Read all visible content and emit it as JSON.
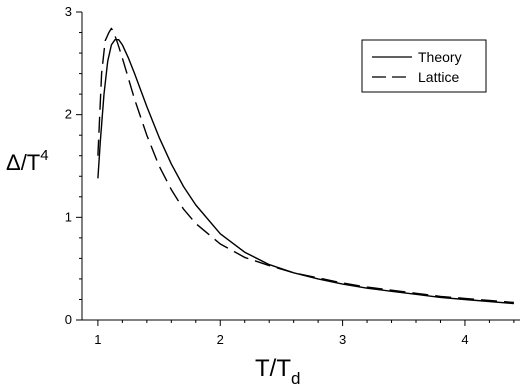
{
  "chart_data": {
    "type": "line",
    "title": "",
    "xlabel": "T/T",
    "xlabel_sub": "d",
    "ylabel": "Δ/T",
    "ylabel_sup": "4",
    "xlim": [
      0.87,
      4.45
    ],
    "ylim": [
      0,
      3
    ],
    "x_ticks": [
      1,
      2,
      3,
      4
    ],
    "x_tick_labels": [
      "1",
      "2",
      "3",
      "4"
    ],
    "y_ticks": [
      0,
      1,
      2,
      3
    ],
    "y_tick_labels": [
      "0",
      "1",
      "2",
      "3"
    ],
    "grid": false,
    "legend_position": "top-right",
    "series": [
      {
        "name": "Theory",
        "style": "solid",
        "color": "#000000",
        "x": [
          1.0,
          1.02,
          1.05,
          1.08,
          1.11,
          1.14,
          1.17,
          1.2,
          1.25,
          1.3,
          1.4,
          1.5,
          1.6,
          1.7,
          1.8,
          2.0,
          2.2,
          2.4,
          2.6,
          2.8,
          3.0,
          3.2,
          3.4,
          3.6,
          3.8,
          4.0,
          4.2,
          4.4
        ],
        "y": [
          1.38,
          1.75,
          2.2,
          2.52,
          2.68,
          2.73,
          2.73,
          2.68,
          2.55,
          2.4,
          2.08,
          1.78,
          1.52,
          1.3,
          1.12,
          0.84,
          0.66,
          0.54,
          0.46,
          0.4,
          0.35,
          0.31,
          0.28,
          0.25,
          0.22,
          0.2,
          0.18,
          0.16
        ]
      },
      {
        "name": "Lattice",
        "style": "dashed",
        "color": "#000000",
        "x": [
          1.0,
          1.03,
          1.06,
          1.09,
          1.11,
          1.13,
          1.16,
          1.2,
          1.25,
          1.3,
          1.4,
          1.5,
          1.6,
          1.7,
          1.8,
          2.0,
          2.2,
          2.4,
          2.6,
          2.8,
          3.0,
          3.2,
          3.4,
          3.6,
          3.8,
          4.0,
          4.2,
          4.4
        ],
        "y": [
          1.6,
          2.4,
          2.72,
          2.8,
          2.84,
          2.8,
          2.7,
          2.55,
          2.35,
          2.15,
          1.8,
          1.5,
          1.27,
          1.08,
          0.94,
          0.74,
          0.61,
          0.53,
          0.46,
          0.41,
          0.36,
          0.32,
          0.29,
          0.26,
          0.23,
          0.21,
          0.19,
          0.17
        ]
      }
    ]
  }
}
